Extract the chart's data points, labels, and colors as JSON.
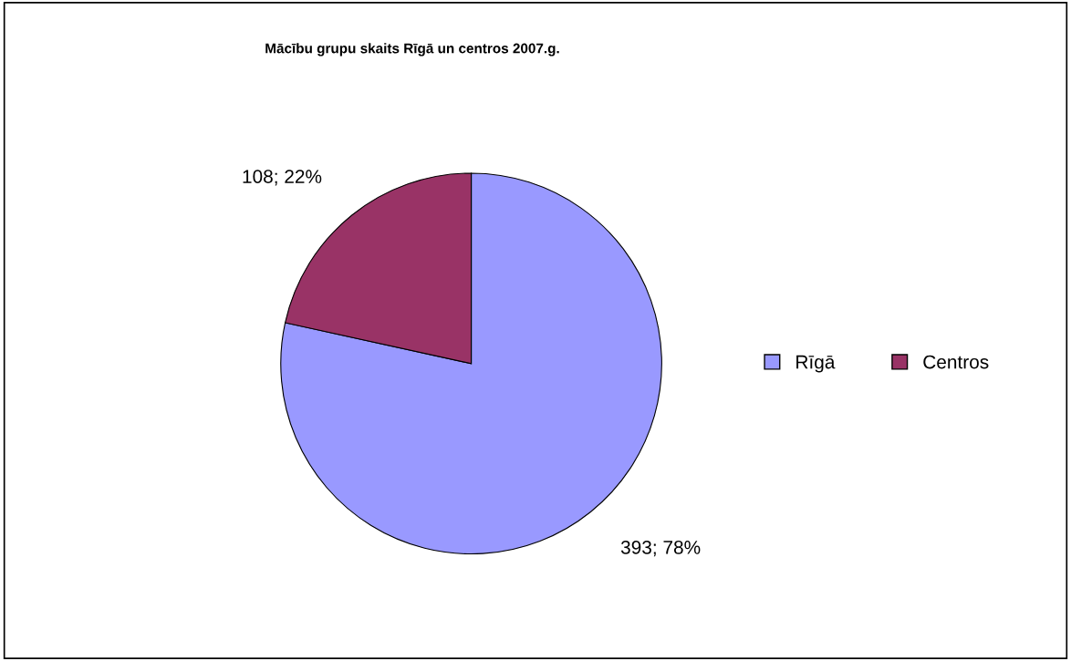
{
  "chart_data": {
    "type": "pie",
    "title": "Mācību grupu skaits Rīgā un centros 2007.g.",
    "categories": [
      "Rīgā",
      "Centros"
    ],
    "values": [
      393,
      108
    ],
    "colors": [
      "#9999ff",
      "#993366"
    ],
    "value_labels": [
      "393; 78%",
      "108; 22%"
    ],
    "legend": "right"
  }
}
